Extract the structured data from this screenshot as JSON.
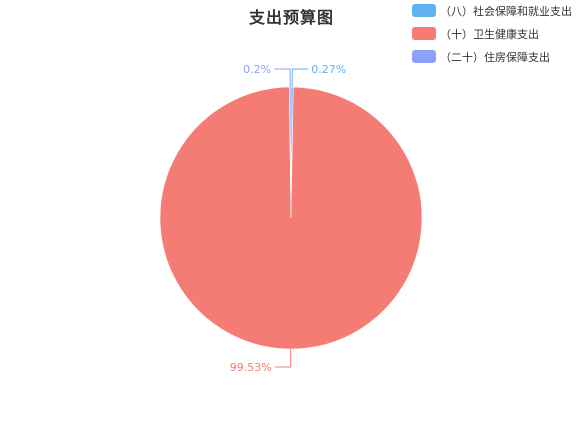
{
  "chart_data": {
    "type": "pie",
    "title": "支出预算图",
    "legend_position": "top-right",
    "slices": [
      {
        "label": "（八）社会保障和就业支出",
        "value": 0.27,
        "display": "0.27%",
        "color": "#5EB3EE"
      },
      {
        "label": "（十）卫生健康支出",
        "value": 99.53,
        "display": "99.53%",
        "color": "#F47C75"
      },
      {
        "label": "（二十）住房保障支出",
        "value": 0.2,
        "display": "0.2%",
        "color": "#8EA1FA"
      }
    ]
  }
}
